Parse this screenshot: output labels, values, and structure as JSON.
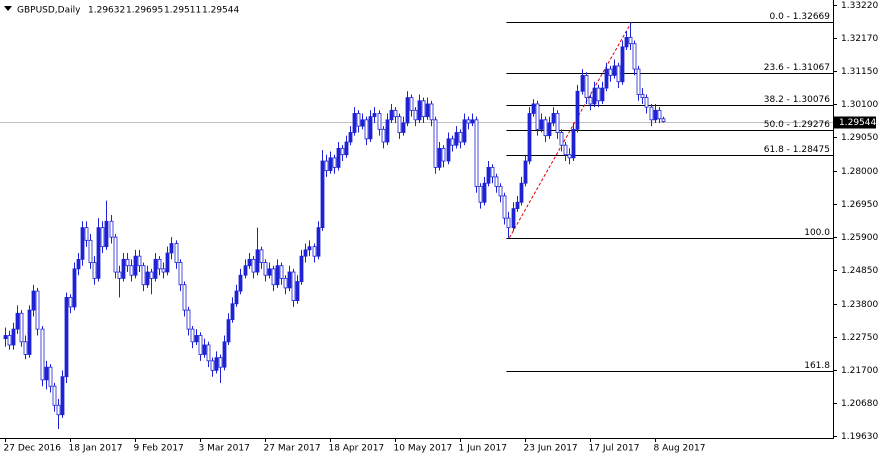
{
  "chart_data": {
    "type": "candlestick",
    "title": "GBPUSD,Daily",
    "bull_color": "#1e22d4",
    "bear_color": "#ffffff",
    "outline_color": "#1e22d4",
    "ylim": [
      1.19567,
      1.33378
    ],
    "yticks": [
      {
        "value": 1.3322,
        "label": "1.33220"
      },
      {
        "value": 1.3217,
        "label": "1.32170"
      },
      {
        "value": 1.3115,
        "label": "1.31150"
      },
      {
        "value": 1.301,
        "label": "1.30100"
      },
      {
        "value": 1.2905,
        "label": "1.29050"
      },
      {
        "value": 1.28,
        "label": "1.28000"
      },
      {
        "value": 1.2695,
        "label": "1.26950"
      },
      {
        "value": 1.259,
        "label": "1.25900"
      },
      {
        "value": 1.2485,
        "label": "1.24850"
      },
      {
        "value": 1.238,
        "label": "1.23800"
      },
      {
        "value": 1.2275,
        "label": "1.22750"
      },
      {
        "value": 1.217,
        "label": "1.21700"
      },
      {
        "value": 1.2068,
        "label": "1.20680"
      },
      {
        "value": 1.1963,
        "label": "1.19630"
      }
    ],
    "categories": [
      "27 Dec 2016",
      null,
      null,
      null,
      null,
      null,
      null,
      null,
      null,
      null,
      null,
      null,
      null,
      null,
      null,
      null,
      "18 Jan 2017",
      null,
      null,
      null,
      null,
      null,
      null,
      null,
      null,
      null,
      null,
      null,
      null,
      null,
      null,
      null,
      "9 Feb 2017",
      null,
      null,
      null,
      null,
      null,
      null,
      null,
      null,
      null,
      null,
      null,
      null,
      null,
      null,
      null,
      "3 Mar 2017",
      null,
      null,
      null,
      null,
      null,
      null,
      null,
      null,
      null,
      null,
      null,
      null,
      null,
      null,
      null,
      "27 Mar 2017",
      null,
      null,
      null,
      null,
      null,
      null,
      null,
      null,
      null,
      null,
      null,
      null,
      null,
      null,
      null,
      "18 Apr 2017",
      null,
      null,
      null,
      null,
      null,
      null,
      null,
      null,
      null,
      null,
      null,
      null,
      null,
      null,
      null,
      "10 May 2017",
      null,
      null,
      null,
      null,
      null,
      null,
      null,
      null,
      null,
      null,
      null,
      null,
      null,
      null,
      null,
      "1 Jun 2017",
      null,
      null,
      null,
      null,
      null,
      null,
      null,
      null,
      null,
      null,
      null,
      null,
      null,
      null,
      null,
      "23 Jun 2017",
      null,
      null,
      null,
      null,
      null,
      null,
      null,
      null,
      null,
      null,
      null,
      null,
      null,
      null,
      null,
      "17 Jul 2017",
      null,
      null,
      null,
      null,
      null,
      null,
      null,
      null,
      null,
      null,
      null,
      null,
      null,
      null,
      null,
      "8 Aug 2017",
      null,
      null
    ],
    "candles": [
      [
        1.227,
        1.2305,
        1.2245,
        1.228
      ],
      [
        1.228,
        1.2295,
        1.2235,
        1.225
      ],
      [
        1.225,
        1.232,
        1.2235,
        1.23
      ],
      [
        1.23,
        1.2375,
        1.2285,
        1.235
      ],
      [
        1.235,
        1.236,
        1.2245,
        1.226
      ],
      [
        1.226,
        1.228,
        1.2205,
        1.222
      ],
      [
        1.222,
        1.2375,
        1.221,
        1.236
      ],
      [
        1.236,
        1.244,
        1.234,
        1.242
      ],
      [
        1.242,
        1.243,
        1.228,
        1.23
      ],
      [
        1.23,
        1.231,
        1.212,
        1.214
      ],
      [
        1.214,
        1.22,
        1.211,
        1.218
      ],
      [
        1.218,
        1.219,
        1.21,
        1.212
      ],
      [
        1.212,
        1.213,
        1.204,
        1.206
      ],
      [
        1.206,
        1.208,
        1.1985,
        1.203
      ],
      [
        1.203,
        1.217,
        1.202,
        1.215
      ],
      [
        1.215,
        1.2415,
        1.213,
        1.24
      ],
      [
        1.24,
        1.241,
        1.235,
        1.237
      ],
      [
        1.237,
        1.251,
        1.236,
        1.249
      ],
      [
        1.249,
        1.254,
        1.247,
        1.252
      ],
      [
        1.252,
        1.264,
        1.25,
        1.262
      ],
      [
        1.262,
        1.264,
        1.256,
        1.258
      ],
      [
        1.258,
        1.26,
        1.249,
        1.251
      ],
      [
        1.251,
        1.253,
        1.244,
        1.246
      ],
      [
        1.246,
        1.265,
        1.245,
        1.262
      ],
      [
        1.262,
        1.264,
        1.254,
        1.256
      ],
      [
        1.256,
        1.2705,
        1.255,
        1.264
      ],
      [
        1.264,
        1.266,
        1.257,
        1.259
      ],
      [
        1.259,
        1.26,
        1.246,
        1.248
      ],
      [
        1.248,
        1.25,
        1.24,
        1.246
      ],
      [
        1.246,
        1.254,
        1.245,
        1.252
      ],
      [
        1.252,
        1.254,
        1.248,
        1.25
      ],
      [
        1.25,
        1.252,
        1.245,
        1.247
      ],
      [
        1.247,
        1.255,
        1.246,
        1.253
      ],
      [
        1.253,
        1.255,
        1.248,
        1.25
      ],
      [
        1.25,
        1.251,
        1.242,
        1.244
      ],
      [
        1.244,
        1.25,
        1.243,
        1.248
      ],
      [
        1.248,
        1.249,
        1.241,
        1.246
      ],
      [
        1.246,
        1.254,
        1.245,
        1.252
      ],
      [
        1.252,
        1.253,
        1.247,
        1.249
      ],
      [
        1.249,
        1.251,
        1.246,
        1.248
      ],
      [
        1.248,
        1.256,
        1.247,
        1.254
      ],
      [
        1.254,
        1.259,
        1.252,
        1.257
      ],
      [
        1.257,
        1.258,
        1.249,
        1.251
      ],
      [
        1.251,
        1.252,
        1.242,
        1.244
      ],
      [
        1.244,
        1.245,
        1.234,
        1.236
      ],
      [
        1.236,
        1.237,
        1.228,
        1.23
      ],
      [
        1.23,
        1.231,
        1.224,
        1.226
      ],
      [
        1.226,
        1.23,
        1.225,
        1.228
      ],
      [
        1.228,
        1.229,
        1.22,
        1.222
      ],
      [
        1.222,
        1.227,
        1.221,
        1.225
      ],
      [
        1.225,
        1.226,
        1.218,
        1.22
      ],
      [
        1.22,
        1.221,
        1.215,
        1.217
      ],
      [
        1.217,
        1.223,
        1.216,
        1.221
      ],
      [
        1.221,
        1.222,
        1.213,
        1.218
      ],
      [
        1.218,
        1.228,
        1.217,
        1.226
      ],
      [
        1.226,
        1.235,
        1.225,
        1.233
      ],
      [
        1.233,
        1.24,
        1.232,
        1.238
      ],
      [
        1.238,
        1.244,
        1.237,
        1.242
      ],
      [
        1.242,
        1.249,
        1.241,
        1.247
      ],
      [
        1.247,
        1.252,
        1.246,
        1.25
      ],
      [
        1.25,
        1.254,
        1.249,
        1.252
      ],
      [
        1.252,
        1.253,
        1.246,
        1.248
      ],
      [
        1.248,
        1.262,
        1.247,
        1.255
      ],
      [
        1.255,
        1.256,
        1.249,
        1.251
      ],
      [
        1.251,
        1.252,
        1.245,
        1.247
      ],
      [
        1.247,
        1.251,
        1.246,
        1.249
      ],
      [
        1.249,
        1.25,
        1.242,
        1.244
      ],
      [
        1.244,
        1.252,
        1.243,
        1.25
      ],
      [
        1.25,
        1.251,
        1.244,
        1.246
      ],
      [
        1.246,
        1.247,
        1.241,
        1.243
      ],
      [
        1.243,
        1.25,
        1.242,
        1.248
      ],
      [
        1.248,
        1.249,
        1.237,
        1.239
      ],
      [
        1.239,
        1.247,
        1.238,
        1.245
      ],
      [
        1.245,
        1.255,
        1.244,
        1.253
      ],
      [
        1.253,
        1.257,
        1.251,
        1.255
      ],
      [
        1.255,
        1.258,
        1.253,
        1.256
      ],
      [
        1.256,
        1.257,
        1.251,
        1.253
      ],
      [
        1.253,
        1.264,
        1.252,
        1.262
      ],
      [
        1.262,
        1.2865,
        1.261,
        1.283
      ],
      [
        1.283,
        1.285,
        1.278,
        1.28
      ],
      [
        1.28,
        1.286,
        1.279,
        1.284
      ],
      [
        1.284,
        1.285,
        1.279,
        1.281
      ],
      [
        1.281,
        1.289,
        1.28,
        1.287
      ],
      [
        1.287,
        1.288,
        1.283,
        1.285
      ],
      [
        1.285,
        1.291,
        1.284,
        1.289
      ],
      [
        1.289,
        1.294,
        1.288,
        1.292
      ],
      [
        1.292,
        1.3,
        1.291,
        1.298
      ],
      [
        1.298,
        1.299,
        1.292,
        1.294
      ],
      [
        1.294,
        1.298,
        1.293,
        1.296
      ],
      [
        1.296,
        1.297,
        1.288,
        1.29
      ],
      [
        1.29,
        1.299,
        1.289,
        1.297
      ],
      [
        1.297,
        1.3,
        1.295,
        1.298
      ],
      [
        1.298,
        1.299,
        1.291,
        1.293
      ],
      [
        1.293,
        1.294,
        1.287,
        1.289
      ],
      [
        1.289,
        1.298,
        1.288,
        1.296
      ],
      [
        1.296,
        1.301,
        1.295,
        1.299
      ],
      [
        1.299,
        1.3,
        1.295,
        1.297
      ],
      [
        1.297,
        1.298,
        1.29,
        1.292
      ],
      [
        1.292,
        1.297,
        1.291,
        1.295
      ],
      [
        1.295,
        1.305,
        1.294,
        1.303
      ],
      [
        1.303,
        1.304,
        1.297,
        1.299
      ],
      [
        1.299,
        1.3,
        1.294,
        1.296
      ],
      [
        1.296,
        1.304,
        1.295,
        1.302
      ],
      [
        1.302,
        1.303,
        1.295,
        1.297
      ],
      [
        1.297,
        1.303,
        1.296,
        1.301
      ],
      [
        1.301,
        1.302,
        1.294,
        1.296
      ],
      [
        1.296,
        1.297,
        1.279,
        1.281
      ],
      [
        1.281,
        1.289,
        1.28,
        1.287
      ],
      [
        1.287,
        1.288,
        1.281,
        1.283
      ],
      [
        1.283,
        1.292,
        1.282,
        1.29
      ],
      [
        1.29,
        1.291,
        1.286,
        1.288
      ],
      [
        1.288,
        1.294,
        1.287,
        1.292
      ],
      [
        1.292,
        1.293,
        1.287,
        1.289
      ],
      [
        1.289,
        1.298,
        1.288,
        1.296
      ],
      [
        1.296,
        1.297,
        1.293,
        1.295
      ],
      [
        1.295,
        1.298,
        1.294,
        1.296
      ],
      [
        1.296,
        1.297,
        1.273,
        1.275
      ],
      [
        1.275,
        1.276,
        1.268,
        1.27
      ],
      [
        1.27,
        1.278,
        1.269,
        1.276
      ],
      [
        1.276,
        1.283,
        1.275,
        1.281
      ],
      [
        1.281,
        1.282,
        1.276,
        1.278
      ],
      [
        1.278,
        1.279,
        1.273,
        1.275
      ],
      [
        1.275,
        1.276,
        1.27,
        1.272
      ],
      [
        1.272,
        1.273,
        1.263,
        1.265
      ],
      [
        1.265,
        1.267,
        1.25883,
        1.262
      ],
      [
        1.262,
        1.27,
        1.261,
        1.268
      ],
      [
        1.268,
        1.272,
        1.267,
        1.27
      ],
      [
        1.27,
        1.278,
        1.269,
        1.276
      ],
      [
        1.276,
        1.285,
        1.275,
        1.283
      ],
      [
        1.283,
        1.3,
        1.282,
        1.298
      ],
      [
        1.298,
        1.3025,
        1.297,
        1.301
      ],
      [
        1.301,
        1.302,
        1.291,
        1.293
      ],
      [
        1.293,
        1.298,
        1.292,
        1.296
      ],
      [
        1.296,
        1.297,
        1.289,
        1.291
      ],
      [
        1.291,
        1.297,
        1.29,
        1.295
      ],
      [
        1.295,
        1.3,
        1.294,
        1.298
      ],
      [
        1.298,
        1.299,
        1.29,
        1.292
      ],
      [
        1.292,
        1.293,
        1.286,
        1.288
      ],
      [
        1.288,
        1.289,
        1.283,
        1.285
      ],
      [
        1.285,
        1.287,
        1.282,
        1.284
      ],
      [
        1.284,
        1.295,
        1.283,
        1.293
      ],
      [
        1.293,
        1.307,
        1.292,
        1.305
      ],
      [
        1.305,
        1.312,
        1.304,
        1.31
      ],
      [
        1.31,
        1.311,
        1.301,
        1.303
      ],
      [
        1.303,
        1.304,
        1.299,
        1.301
      ],
      [
        1.301,
        1.308,
        1.3,
        1.306
      ],
      [
        1.306,
        1.307,
        1.3,
        1.302
      ],
      [
        1.302,
        1.308,
        1.301,
        1.306
      ],
      [
        1.306,
        1.314,
        1.305,
        1.312
      ],
      [
        1.312,
        1.313,
        1.308,
        1.31
      ],
      [
        1.31,
        1.315,
        1.309,
        1.313
      ],
      [
        1.313,
        1.314,
        1.306,
        1.308
      ],
      [
        1.308,
        1.321,
        1.307,
        1.319
      ],
      [
        1.319,
        1.324,
        1.318,
        1.322
      ],
      [
        1.322,
        1.32669,
        1.318,
        1.32
      ],
      [
        1.32,
        1.321,
        1.31,
        1.312
      ],
      [
        1.312,
        1.313,
        1.302,
        1.304
      ],
      [
        1.304,
        1.306,
        1.301,
        1.303
      ],
      [
        1.303,
        1.304,
        1.298,
        1.3
      ],
      [
        1.3,
        1.301,
        1.294,
        1.296
      ],
      [
        1.296,
        1.301,
        1.295,
        1.299
      ],
      [
        1.299,
        1.3,
        1.295,
        1.29632
      ],
      [
        1.29632,
        1.29695,
        1.29511,
        1.29544
      ]
    ],
    "fibonacci": [
      {
        "label": "0.0 - 1.32669",
        "value": 1.32669
      },
      {
        "label": "23.6 - 1.31067",
        "value": 1.31067
      },
      {
        "label": "38.2 - 1.30076",
        "value": 1.30076
      },
      {
        "label": "50.0 - 1.29276",
        "value": 1.29276
      },
      {
        "label": "61.8 - 1.28475",
        "value": 1.28475
      },
      {
        "label": "100.0",
        "value": 1.25883
      },
      {
        "label": "161.8",
        "value": 1.21689
      }
    ]
  }
}
